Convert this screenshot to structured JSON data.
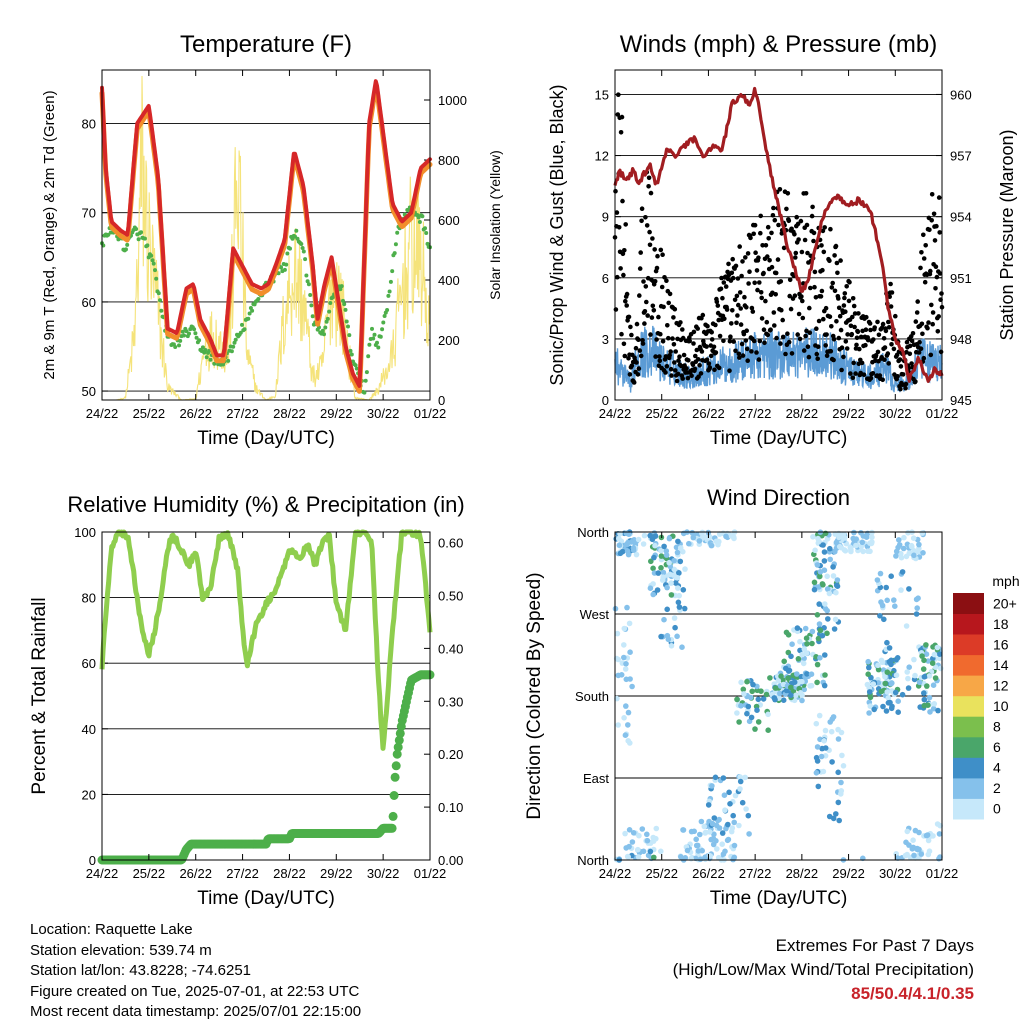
{
  "colors": {
    "t2m": "#d62728",
    "t9m": "#f28e2b",
    "td": "#4daf4a",
    "solar": "#f5e37a",
    "wind": "#5b9bd5",
    "gust": "#000000",
    "pressure": "#a11d21",
    "rh": "#8fce4e",
    "precip": "#4daf4a",
    "grid": "#000000"
  },
  "time_ticks": [
    "24/22",
    "25/22",
    "26/22",
    "27/22",
    "28/22",
    "29/22",
    "30/22",
    "01/22"
  ],
  "panels": {
    "temperature": {
      "title": "Temperature (F)",
      "ylabel": "2m & 9m T (Red, Orange) & 2m Td (Green)",
      "ylabel2": "Solar Insolation (Yellow)",
      "xlabel": "Time (Day/UTC)",
      "yticks": [
        "50",
        "60",
        "70",
        "80"
      ],
      "yticks2": [
        "0",
        "200",
        "400",
        "600",
        "800",
        "1000"
      ]
    },
    "winds": {
      "title": "Winds (mph) & Pressure (mb)",
      "ylabel": "Sonic/Prop Wind & Gust (Blue, Black)",
      "ylabel2": "Station Pressure (Maroon)",
      "xlabel": "Time (Day/UTC)",
      "yticks": [
        "0",
        "3",
        "6",
        "9",
        "12",
        "15"
      ],
      "yticks2": [
        "945",
        "948",
        "951",
        "954",
        "957",
        "960"
      ]
    },
    "humidity": {
      "title": "Relative Humidity (%) & Precipitation (in)",
      "ylabel": "Percent & Total Rainfall",
      "xlabel": "Time (Day/UTC)",
      "yticks": [
        "0",
        "20",
        "40",
        "60",
        "80",
        "100"
      ],
      "yticks2": [
        "0.00",
        "0.10",
        "0.20",
        "0.30",
        "0.40",
        "0.50",
        "0.60"
      ]
    },
    "direction": {
      "title": "Wind Direction",
      "ylabel": "Direction (Colored By Speed)",
      "xlabel": "Time (Day/UTC)",
      "yticks": [
        "North",
        "East",
        "South",
        "West",
        "North"
      ],
      "colorbar_unit": "mph",
      "colorbar_labels": [
        "0",
        "2",
        "4",
        "6",
        "8",
        "10",
        "12",
        "14",
        "16",
        "18",
        "20+"
      ],
      "colorbar_colors": [
        "#c6e8fa",
        "#85c1eb",
        "#3f8fc8",
        "#4aa66a",
        "#7bbf4d",
        "#e9e25d",
        "#f7a747",
        "#f06a2e",
        "#dc3b27",
        "#b7171d",
        "#8b0f12"
      ]
    }
  },
  "chart_data": [
    {
      "type": "line",
      "title": "Temperature (F)",
      "xlabel": "Time (Day/UTC)",
      "ylabel": "2m & 9m T (Red, Orange) & 2m Td (Green)",
      "ylabel2": "Solar Insolation (Yellow)",
      "ylim": [
        49,
        86
      ],
      "y2lim": [
        0,
        1100
      ],
      "xlim": [
        0,
        7
      ],
      "x_ticks": [
        "24/22",
        "25/22",
        "26/22",
        "27/22",
        "28/22",
        "29/22",
        "30/22",
        "01/22"
      ],
      "series": [
        {
          "key": "t2m",
          "x": [
            0,
            0.08,
            0.2,
            0.4,
            0.55,
            0.75,
            1.0,
            1.2,
            1.4,
            1.6,
            1.8,
            1.95,
            2.1,
            2.3,
            2.45,
            2.6,
            2.8,
            3.0,
            3.2,
            3.4,
            3.55,
            3.7,
            3.9,
            4.1,
            4.3,
            4.5,
            4.6,
            4.75,
            4.9,
            5.05,
            5.2,
            5.35,
            5.5,
            5.7,
            5.85,
            6.0,
            6.2,
            6.4,
            6.6,
            6.8,
            7.0
          ],
          "y": [
            84,
            75,
            69,
            68,
            67.5,
            80,
            82,
            74,
            57,
            56.5,
            61.5,
            62,
            58,
            56,
            54,
            54,
            66,
            64,
            62,
            61.5,
            62,
            64,
            67,
            77,
            73,
            64,
            58,
            62,
            65,
            60,
            55,
            52,
            50.5,
            80,
            85,
            79,
            71,
            69,
            70,
            75,
            76
          ]
        },
        {
          "key": "td",
          "x": [
            0,
            0.1,
            0.3,
            0.5,
            0.7,
            0.9,
            1.1,
            1.3,
            1.5,
            1.7,
            1.9,
            2.1,
            2.3,
            2.5,
            2.7,
            2.9,
            3.1,
            3.3,
            3.5,
            3.7,
            3.9,
            4.1,
            4.3,
            4.5,
            4.7,
            4.9,
            5.1,
            5.3,
            5.5,
            5.6,
            5.75,
            5.9,
            6.1,
            6.3,
            6.5,
            6.7,
            6.85,
            7.0
          ],
          "y": [
            66,
            68,
            68,
            66,
            68,
            67,
            64,
            58,
            55,
            56,
            57,
            55,
            54,
            53,
            54,
            56,
            58,
            60,
            62,
            63,
            64,
            68,
            66,
            58,
            56,
            60,
            62,
            55,
            51,
            50,
            57,
            55,
            60,
            68,
            70,
            70,
            69,
            66
          ]
        },
        {
          "key": "solar",
          "x": [
            0,
            0.3,
            0.5,
            0.7,
            0.85,
            1.0,
            1.2,
            1.4,
            1.7,
            2.0,
            2.2,
            2.4,
            2.7,
            2.9,
            3.1,
            3.3,
            3.5,
            3.7,
            3.9,
            4.1,
            4.3,
            4.5,
            4.7,
            4.9,
            5.1,
            5.4,
            5.7,
            5.9,
            6.2,
            6.4,
            6.6,
            6.8,
            7.0
          ],
          "y": [
            0,
            0,
            10,
            300,
            1050,
            700,
            400,
            60,
            0,
            5,
            250,
            300,
            200,
            1050,
            200,
            50,
            0,
            20,
            400,
            600,
            450,
            100,
            150,
            550,
            450,
            10,
            0,
            50,
            200,
            500,
            700,
            650,
            300
          ]
        }
      ]
    },
    {
      "type": "line",
      "title": "Winds (mph) & Pressure (mb)",
      "xlabel": "Time (Day/UTC)",
      "ylabel": "Sonic/Prop Wind & Gust (Blue, Black)",
      "ylabel2": "Station Pressure (Maroon)",
      "ylim": [
        0,
        16.2
      ],
      "y2lim": [
        945,
        961.2
      ],
      "xlim": [
        0,
        7
      ],
      "x_ticks": [
        "24/22",
        "25/22",
        "26/22",
        "27/22",
        "28/22",
        "29/22",
        "30/22",
        "01/22"
      ],
      "series": [
        {
          "key": "pressure",
          "x": [
            0,
            0.1,
            0.25,
            0.4,
            0.5,
            0.6,
            0.75,
            0.9,
            1.1,
            1.3,
            1.5,
            1.7,
            1.9,
            2.1,
            2.3,
            2.5,
            2.7,
            2.9,
            3.0,
            3.15,
            3.3,
            3.5,
            3.7,
            3.85,
            4.0,
            4.15,
            4.3,
            4.45,
            4.6,
            4.8,
            5.0,
            5.2,
            5.35,
            5.5,
            5.7,
            5.85,
            6.0,
            6.15,
            6.3,
            6.5,
            6.7,
            6.85,
            7.0
          ],
          "y": [
            955.5,
            956.2,
            955.8,
            956.3,
            955.5,
            956.0,
            956.5,
            955.5,
            957.3,
            957.0,
            957.5,
            957.8,
            957.0,
            957.5,
            957.3,
            959.5,
            960.0,
            959.5,
            960.3,
            958.5,
            956.5,
            954.5,
            952.5,
            951.5,
            950.3,
            951.0,
            952.5,
            954.0,
            954.8,
            955.0,
            954.5,
            954.8,
            954.6,
            954.0,
            952.0,
            949.5,
            948.0,
            947.5,
            946.0,
            947.0,
            946.0,
            946.5,
            946.2
          ]
        }
      ],
      "wind_mean_range": [
        0.5,
        3.0
      ],
      "gust_range": [
        0.3,
        14.0
      ]
    },
    {
      "type": "line",
      "title": "Relative Humidity (%) & Precipitation (in)",
      "xlabel": "Time (Day/UTC)",
      "ylabel": "Percent & Total Rainfall",
      "ylim": [
        0,
        100
      ],
      "y2lim": [
        0,
        0.62
      ],
      "xlim": [
        0,
        7
      ],
      "x_ticks": [
        "24/22",
        "25/22",
        "26/22",
        "27/22",
        "28/22",
        "29/22",
        "30/22",
        "01/22"
      ],
      "series": [
        {
          "key": "rh",
          "x": [
            0,
            0.05,
            0.2,
            0.35,
            0.55,
            0.7,
            0.85,
            1.0,
            1.1,
            1.25,
            1.4,
            1.5,
            1.65,
            1.85,
            2.0,
            2.15,
            2.3,
            2.5,
            2.7,
            2.9,
            3.0,
            3.1,
            3.3,
            3.5,
            3.7,
            3.9,
            4.0,
            4.2,
            4.4,
            4.55,
            4.7,
            4.85,
            5.0,
            5.2,
            5.4,
            5.55,
            5.75,
            5.9,
            6.0,
            6.2,
            6.4,
            6.6,
            6.8,
            7.0
          ],
          "y": [
            58,
            70,
            95,
            100,
            99,
            85,
            70,
            63,
            68,
            80,
            95,
            99,
            96,
            90,
            94,
            80,
            82,
            98,
            99,
            88,
            70,
            60,
            72,
            78,
            82,
            90,
            95,
            92,
            96,
            90,
            97,
            99,
            78,
            70,
            99,
            100,
            98,
            55,
            33,
            70,
            100,
            100,
            99,
            70
          ]
        },
        {
          "key": "precip",
          "x": [
            0,
            1.5,
            1.7,
            1.8,
            1.9,
            2.0,
            3.5,
            3.55,
            4.0,
            4.05,
            4.5,
            5.5,
            5.9,
            6.0,
            6.2,
            6.25,
            6.3,
            6.4,
            6.5,
            6.6,
            6.8,
            7.0
          ],
          "y": [
            0,
            0,
            0.0,
            0.02,
            0.03,
            0.03,
            0.03,
            0.04,
            0.04,
            0.05,
            0.05,
            0.05,
            0.05,
            0.06,
            0.06,
            0.15,
            0.2,
            0.26,
            0.3,
            0.34,
            0.35,
            0.35
          ]
        }
      ]
    },
    {
      "type": "scatter",
      "title": "Wind Direction",
      "xlabel": "Time (Day/UTC)",
      "ylabel": "Direction (Colored By Speed)",
      "ylim": [
        0,
        360
      ],
      "xlim": [
        0,
        7
      ],
      "y_ticks": [
        "North",
        "East",
        "South",
        "West",
        "North"
      ],
      "x_ticks": [
        "24/22",
        "25/22",
        "26/22",
        "27/22",
        "28/22",
        "29/22",
        "30/22",
        "01/22"
      ],
      "colorbar_unit": "mph",
      "series": [
        {
          "key": "direction",
          "x": [
            0.2,
            1.0,
            1.5,
            2.3,
            3.0,
            3.5,
            4.1,
            4.7,
            5.3,
            5.8,
            6.5,
            6.9
          ],
          "y": [
            350,
            300,
            340,
            40,
            120,
            200,
            240,
            300,
            330,
            190,
            250,
            210
          ]
        }
      ]
    }
  ],
  "footer": {
    "location": "Location: Raquette Lake",
    "elevation": "Station elevation: 539.74 m",
    "latlon": "Station lat/lon: 43.8228; -74.6251",
    "created": "Figure created on Tue, 2025-07-01, at 22:53 UTC",
    "latest": "Most recent data timestamp: 2025/07/01 22:15:00",
    "extremes_title": "Extremes For Past 7 Days",
    "extremes_subtitle": "(High/Low/Max Wind/Total Precipitation)",
    "extremes_value": "85/50.4/4.1/0.35"
  }
}
